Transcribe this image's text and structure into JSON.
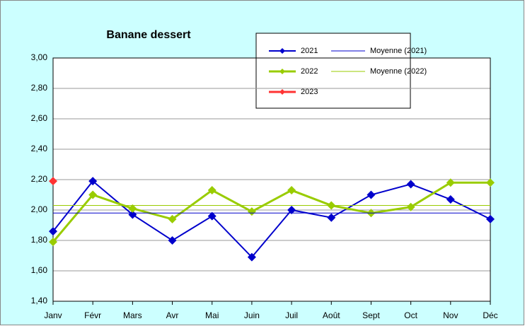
{
  "chart_data": {
    "type": "line",
    "title": "Banane dessert",
    "categories": [
      "Janv",
      "Févr",
      "Mars",
      "Avr",
      "Mai",
      "Juin",
      "Juil",
      "Août",
      "Sept",
      "Oct",
      "Nov",
      "Déc"
    ],
    "series": [
      {
        "name": "2021",
        "color": "#0000cc",
        "values": [
          1.86,
          2.19,
          1.97,
          1.8,
          1.96,
          1.69,
          2.0,
          1.95,
          2.1,
          2.17,
          2.07,
          1.94
        ]
      },
      {
        "name": "2022",
        "color": "#99cc00",
        "values": [
          1.79,
          2.1,
          2.01,
          1.94,
          2.13,
          1.99,
          2.13,
          2.03,
          1.98,
          2.02,
          2.18,
          2.18
        ]
      },
      {
        "name": "2023",
        "color": "#ff3333",
        "values": [
          2.19,
          null,
          null,
          null,
          null,
          null,
          null,
          null,
          null,
          null,
          null,
          null
        ]
      },
      {
        "name": "Moyenne (2021)",
        "color": "#0000cc",
        "value": 1.98
      },
      {
        "name": "Moyenne (2022)",
        "color": "#99cc00",
        "value": 2.03
      }
    ],
    "ylim": [
      1.4,
      3.0
    ],
    "yticks": [
      {
        "value": 1.4,
        "label": "1,40"
      },
      {
        "value": 1.6,
        "label": "1,60"
      },
      {
        "value": 1.8,
        "label": "1,80"
      },
      {
        "value": 2.0,
        "label": "2,00"
      },
      {
        "value": 2.2,
        "label": "2,20"
      },
      {
        "value": 2.4,
        "label": "2,40"
      },
      {
        "value": 2.6,
        "label": "2,60"
      },
      {
        "value": 2.8,
        "label": "2,80"
      },
      {
        "value": 3.0,
        "label": "3,00"
      }
    ],
    "grid": true,
    "legend": "top"
  }
}
